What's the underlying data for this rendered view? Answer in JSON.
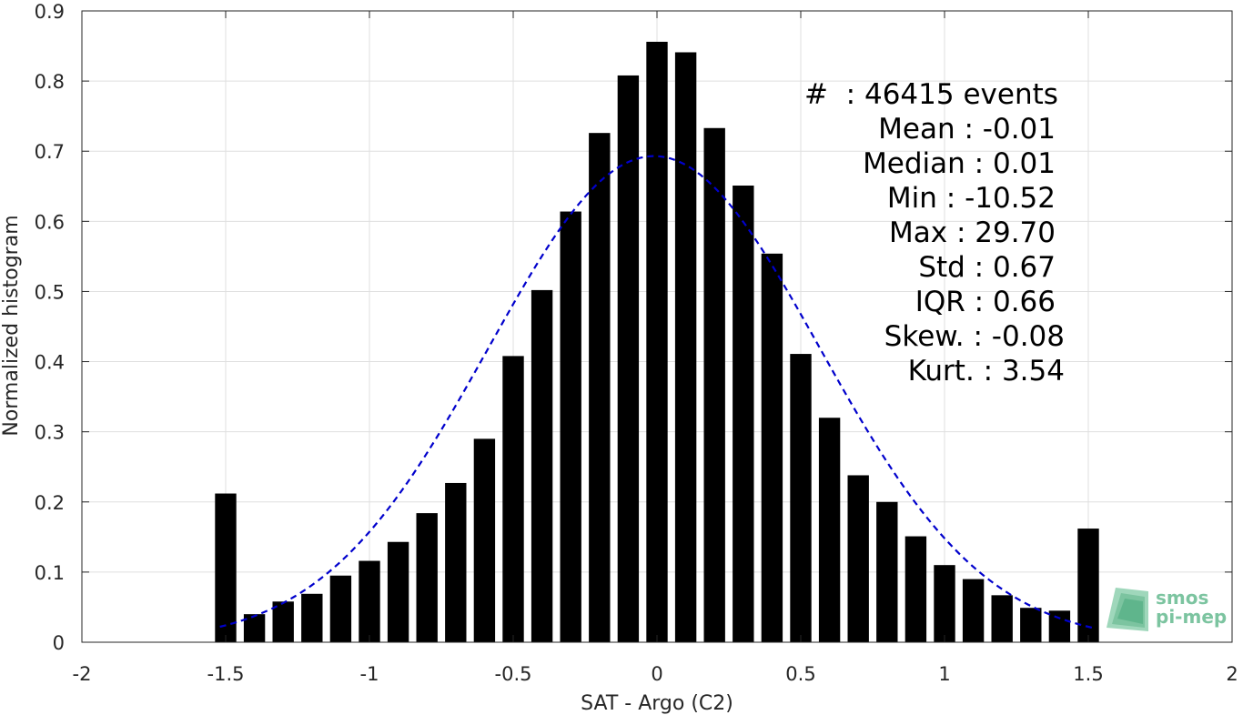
{
  "chart_data": {
    "type": "bar",
    "xlabel": "SAT - Argo (C2)",
    "ylabel": "Normalized histogram",
    "xlim": [
      -2,
      2
    ],
    "ylim": [
      0,
      0.9
    ],
    "xticks": [
      -2,
      -1.5,
      -1,
      -0.5,
      0,
      0.5,
      1,
      1.5,
      2
    ],
    "xtick_labels": [
      "-2",
      "-1.5",
      "-1",
      "-0.5",
      "0",
      "0.5",
      "1",
      "1.5",
      "2"
    ],
    "yticks": [
      0,
      0.1,
      0.2,
      0.3,
      0.4,
      0.5,
      0.6,
      0.7,
      0.8,
      0.9
    ],
    "ytick_labels": [
      "0",
      "0.1",
      "0.2",
      "0.3",
      "0.4",
      "0.5",
      "0.6",
      "0.7",
      "0.8",
      "0.9"
    ],
    "grid": true,
    "bar_color": "#000000",
    "fit_color": "#0000cc",
    "x": [
      -1.5,
      -1.4,
      -1.3,
      -1.2,
      -1.1,
      -1.0,
      -0.9,
      -0.8,
      -0.7,
      -0.6,
      -0.5,
      -0.4,
      -0.3,
      -0.2,
      -0.1,
      0.0,
      0.1,
      0.2,
      0.3,
      0.4,
      0.5,
      0.6,
      0.7,
      0.8,
      0.9,
      1.0,
      1.1,
      1.2,
      1.3,
      1.4,
      1.5
    ],
    "values": [
      0.212,
      0.04,
      0.058,
      0.069,
      0.095,
      0.116,
      0.143,
      0.184,
      0.227,
      0.29,
      0.408,
      0.502,
      0.614,
      0.726,
      0.808,
      0.856,
      0.841,
      0.733,
      0.651,
      0.554,
      0.411,
      0.32,
      0.238,
      0.2,
      0.151,
      0.11,
      0.09,
      0.067,
      0.049,
      0.045,
      0.162
    ],
    "fit": {
      "type": "gaussian",
      "mean": -0.01,
      "std": 0.575,
      "peak": 0.693,
      "x_range": [
        -1.52,
        1.52
      ],
      "style": "dashed"
    },
    "stats": [
      {
        "label": "#  : 46415 events"
      },
      {
        "label": "Mean : -0.01"
      },
      {
        "label": "Median : 0.01"
      },
      {
        "label": "Min : -10.52"
      },
      {
        "label": "Max : 29.70"
      },
      {
        "label": "Std : 0.67"
      },
      {
        "label": "IQR : 0.66"
      },
      {
        "label": "Skew. : -0.08"
      },
      {
        "label": "Kurt. : 3.54"
      }
    ]
  },
  "logo": {
    "line1": "smos",
    "line2": "pi-mep",
    "color": "#7cc4a0"
  }
}
